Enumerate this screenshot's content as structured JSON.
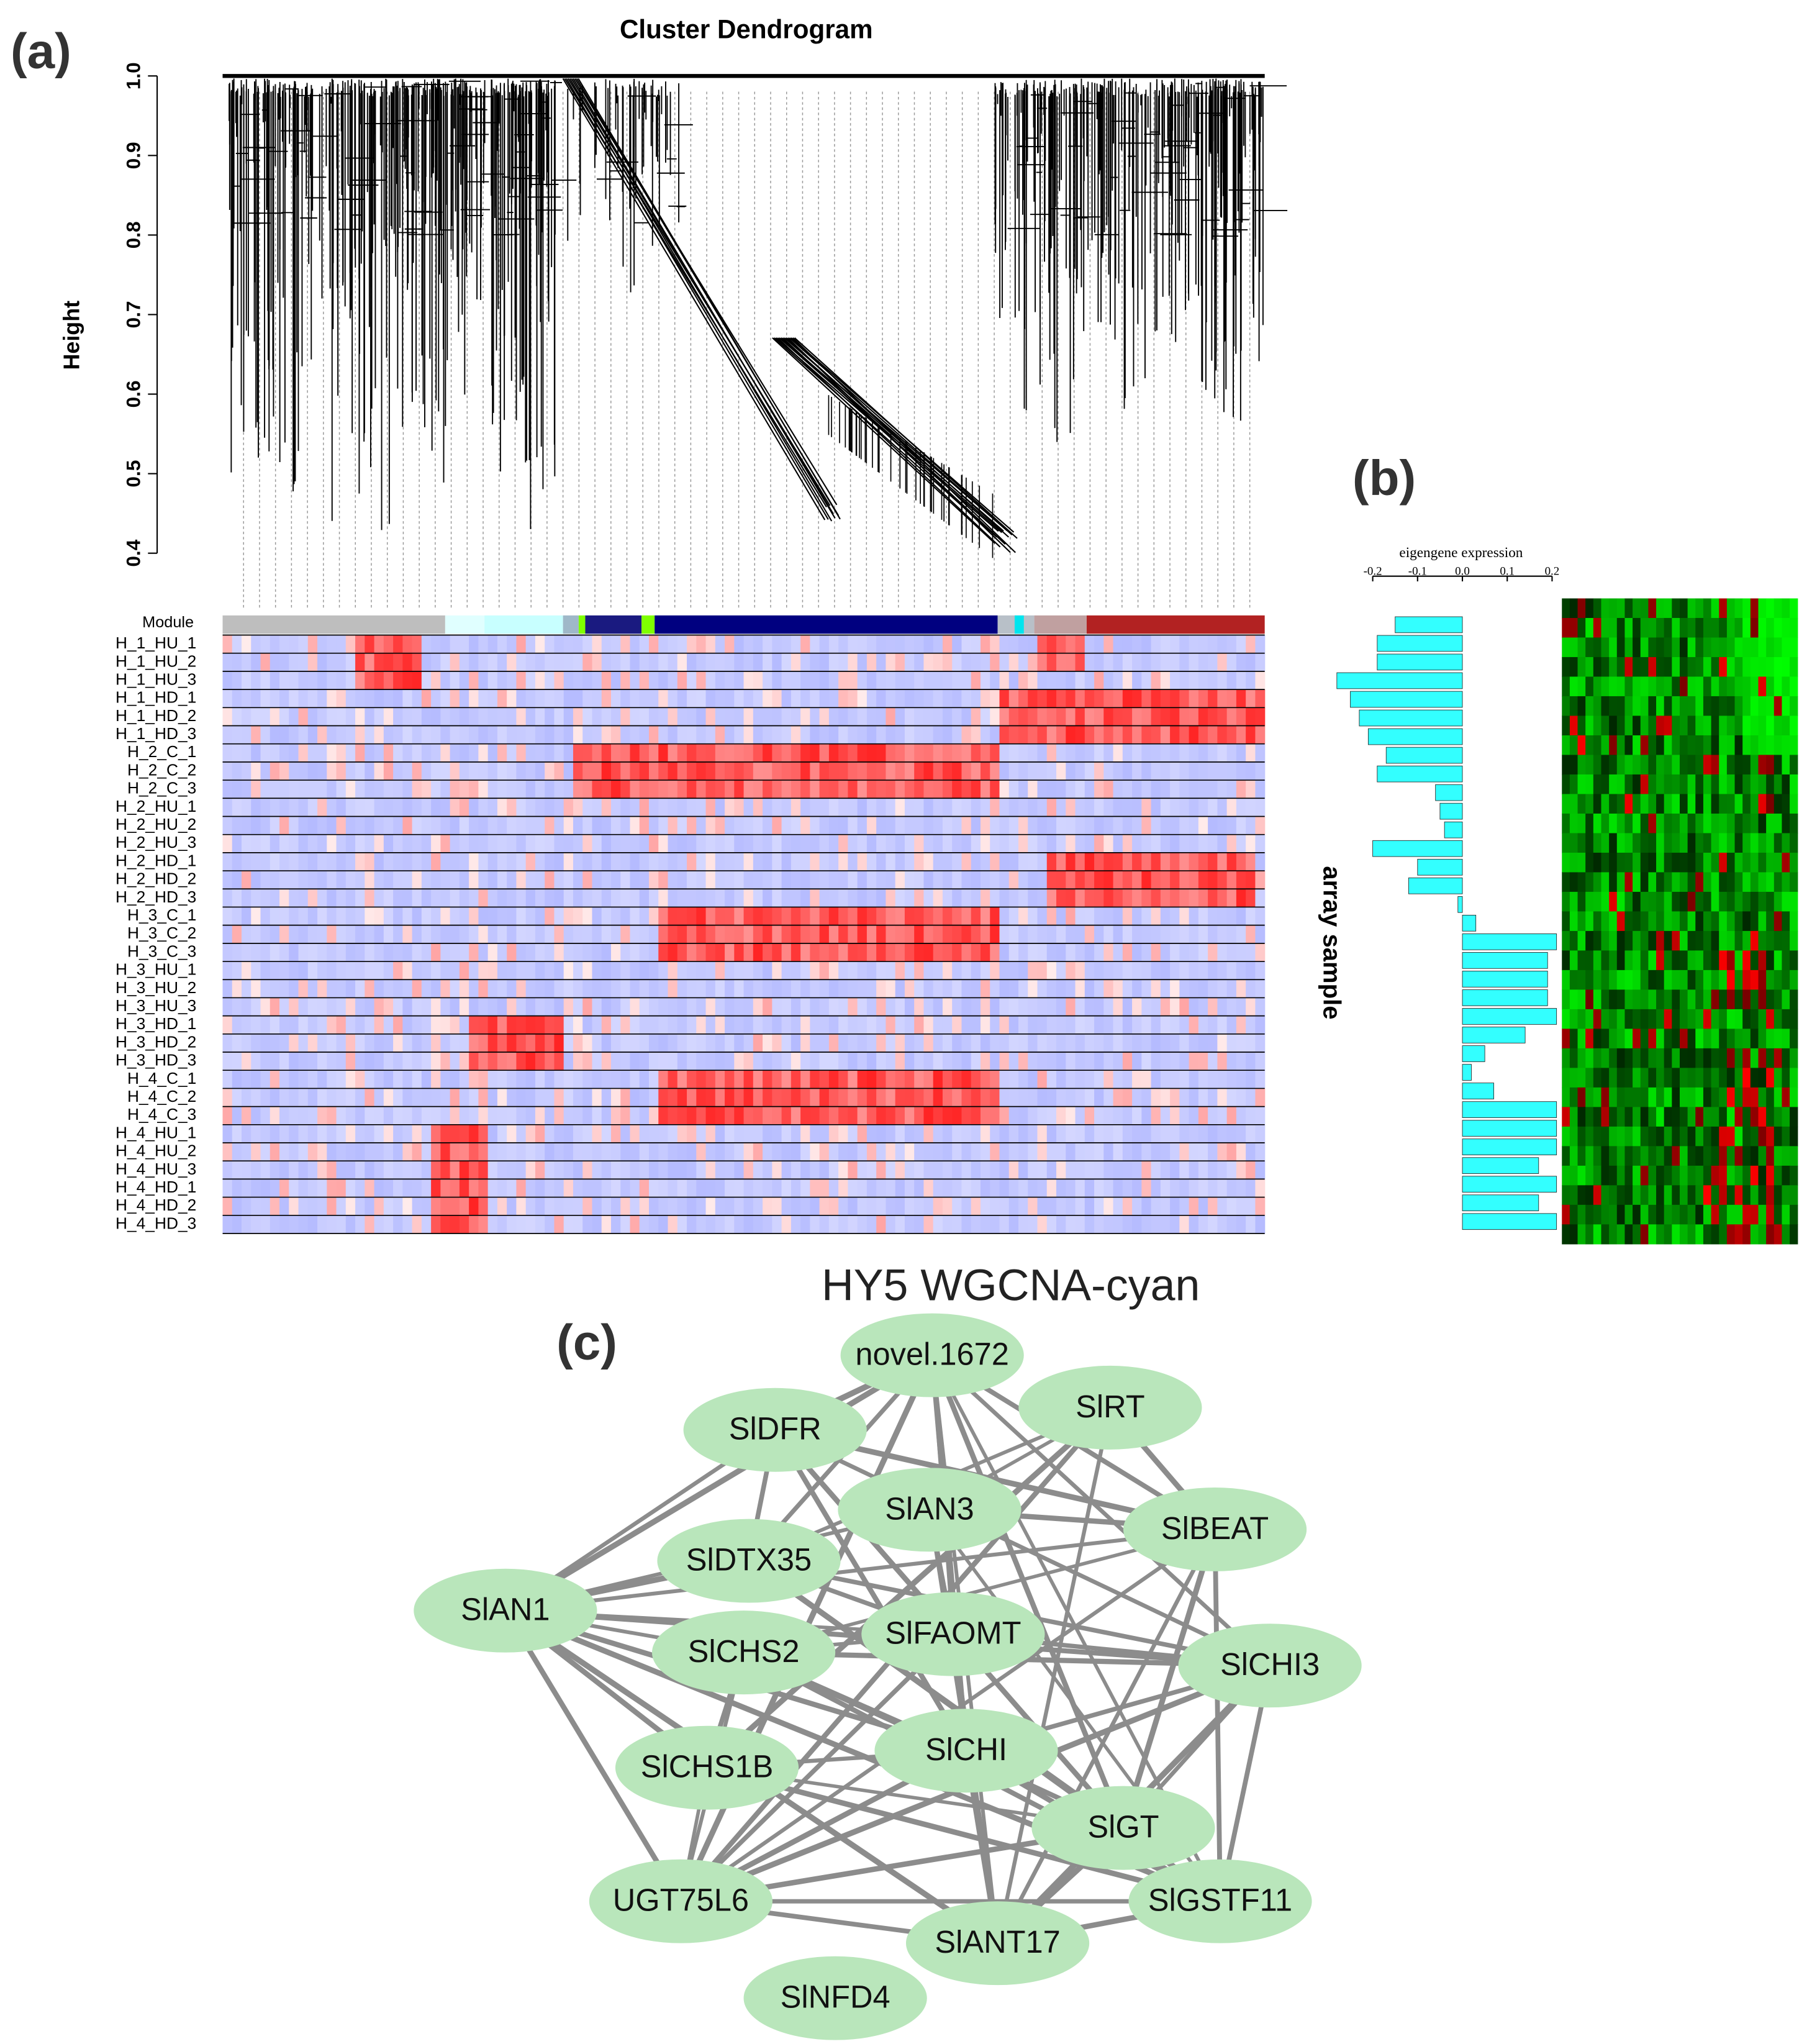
{
  "panel_labels": [
    "(a)",
    "(b)",
    "(c)"
  ],
  "chart_data": [
    {
      "type": "dendrogram",
      "title": "Cluster Dendrogram",
      "ylabel": "Height",
      "ylim": [
        0.33,
        1.0
      ],
      "yticks": [
        0.4,
        0.5,
        0.6,
        0.7,
        0.8,
        0.9,
        {
          "value": 1,
          "label": "1.0"
        }
      ],
      "module_label": "Module",
      "categories": [
        "H_1_HU_1",
        "H_1_HU_2",
        "H_1_HU_3",
        "H_1_HD_1",
        "H_1_HD_2",
        "H_1_HD_3",
        "H_2_C_1",
        "H_2_C_2",
        "H_2_C_3",
        "H_2_HU_1",
        "H_2_HU_2",
        "H_2_HU_3",
        "H_2_HD_1",
        "H_2_HD_2",
        "H_2_HD_3",
        "H_3_C_1",
        "H_3_C_2",
        "H_3_C_3",
        "H_3_HU_1",
        "H_3_HU_2",
        "H_3_HU_3",
        "H_3_HD_1",
        "H_3_HD_2",
        "H_3_HD_3",
        "H_4_C_1",
        "H_4_C_2",
        "H_4_C_3",
        "H_4_HU_1",
        "H_4_HU_2",
        "H_4_HU_3",
        "H_4_HD_1",
        "H_4_HD_2",
        "H_4_HD_3"
      ]
    },
    {
      "type": "bar",
      "orientation": "horizontal",
      "xlabel": "eigengene expression",
      "ylabel": "array sample",
      "color": "#33ffff",
      "xlim": [
        -0.3,
        0.22
      ],
      "xticks": [
        -0.2,
        -0.1,
        {
          "value": 0,
          "label": "0.0"
        },
        0.1,
        0.2
      ],
      "values": [
        -0.15,
        -0.19,
        -0.19,
        -0.28,
        -0.25,
        -0.23,
        -0.21,
        -0.17,
        -0.19,
        -0.06,
        -0.05,
        -0.04,
        -0.2,
        -0.1,
        -0.12,
        -0.01,
        0.03,
        0.21,
        0.19,
        0.19,
        0.19,
        0.21,
        0.14,
        0.05,
        0.02,
        0.07,
        0.21,
        0.21,
        0.21,
        0.17,
        0.21,
        0.17,
        0.21
      ]
    }
  ],
  "network": {
    "title": "HY5  WGCNA-cyan",
    "nodes": [
      "novel.1672",
      "SlDFR",
      "SlRT",
      "SlAN3",
      "SlBEAT",
      "SlDTX35",
      "SlAN1",
      "SlFAOMT",
      "SlCHS2",
      "SlCHI3",
      "SlCHI",
      "SlCHS1B",
      "SlGT",
      "UGT75L6",
      "SlGSTF11",
      "SlANT17",
      "SlNFD4"
    ]
  }
}
